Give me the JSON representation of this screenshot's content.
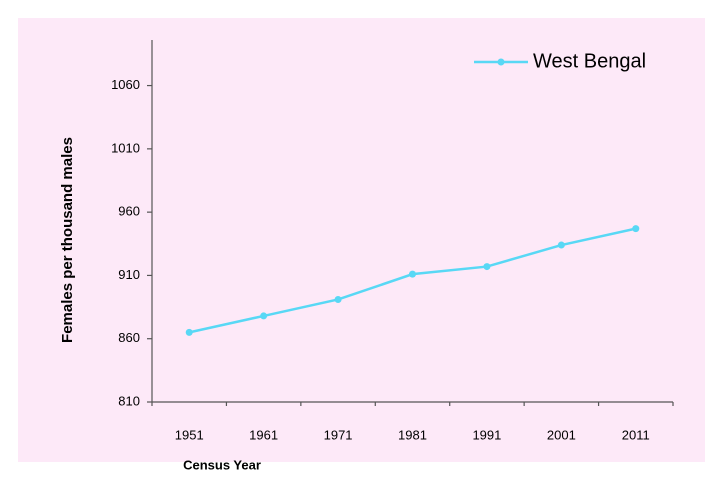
{
  "chart_data": {
    "type": "line",
    "x_label": "Census Year",
    "y_label": "Females per thousand males",
    "categories": [
      "1951",
      "1961",
      "1971",
      "1981",
      "1991",
      "2001",
      "2011"
    ],
    "series": [
      {
        "name": "West Bengal",
        "color": "#58d8f5",
        "values": [
          865,
          878,
          891,
          911,
          917,
          934,
          947
        ]
      }
    ],
    "ylim": [
      810,
      1096
    ],
    "yticks": [
      810,
      860,
      910,
      960,
      1010,
      1060
    ],
    "legend": "top-right"
  }
}
